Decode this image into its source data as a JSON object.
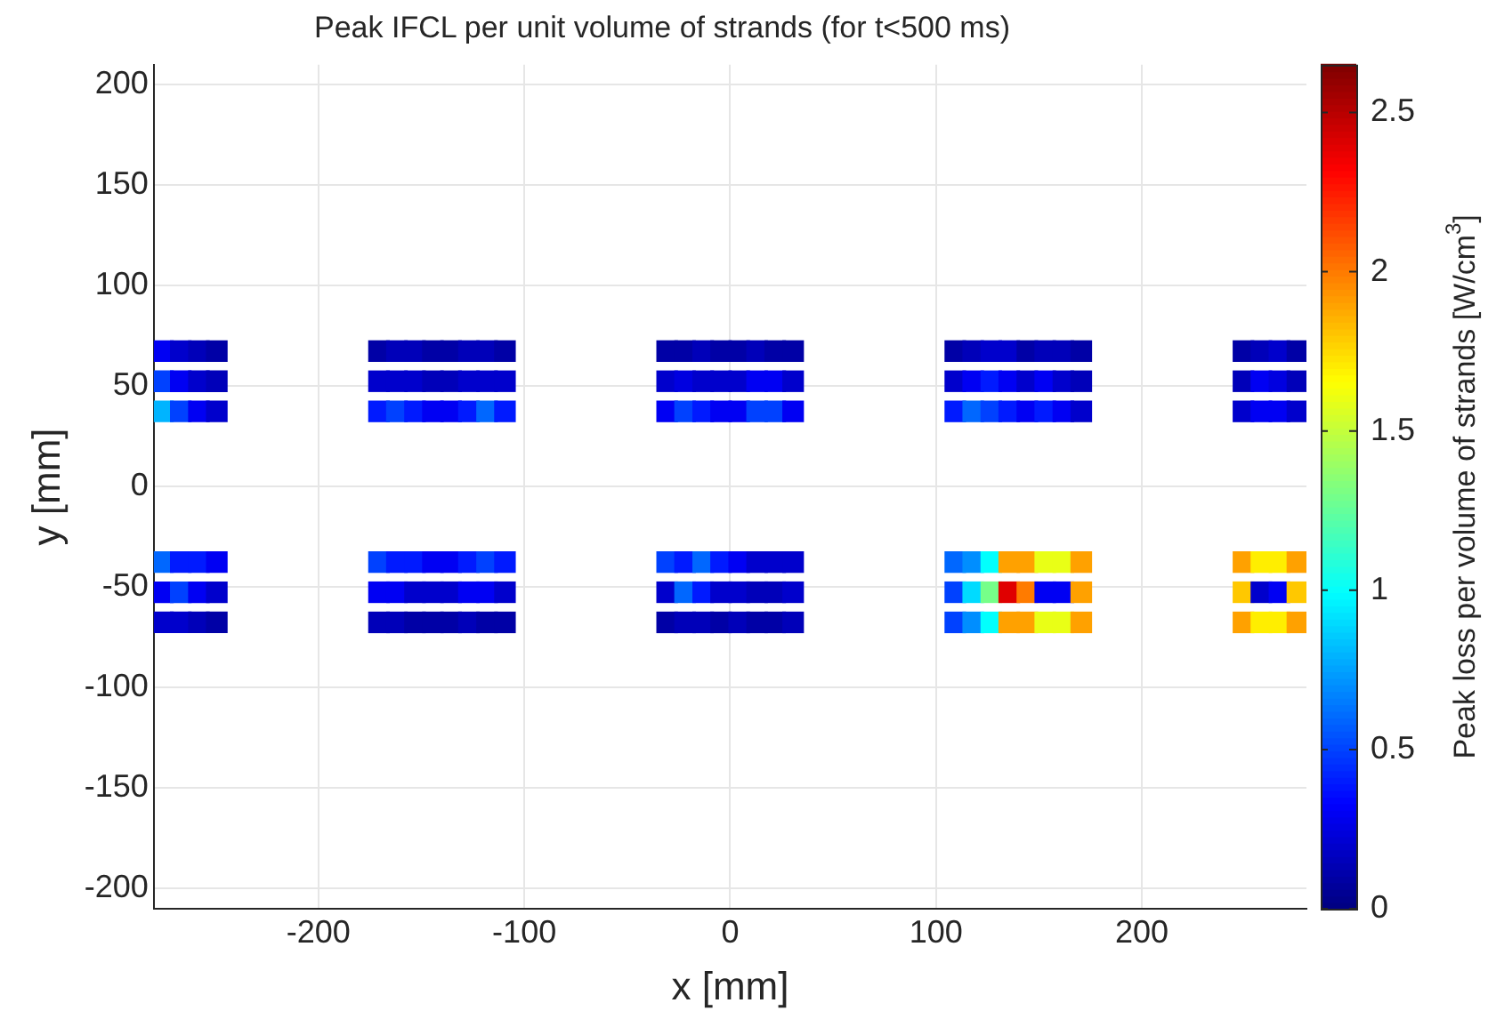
{
  "chart_data": {
    "type": "scatter",
    "title": "Peak IFCL per unit volume of strands (for t<500 ms)",
    "xlabel": "x [mm]",
    "ylabel": "y [mm]",
    "clabel": "Peak loss per volume of strands [W/cm$^{3}$]",
    "xlim": [
      -280,
      280
    ],
    "xticks": [
      -200,
      -100,
      0,
      100,
      200
    ],
    "ylim": [
      -210,
      210
    ],
    "yticks": [
      -200,
      -150,
      -100,
      -50,
      0,
      50,
      100,
      150,
      200
    ],
    "clim": [
      0,
      2.65
    ],
    "cticks": [
      0,
      0.5,
      1,
      1.5,
      2,
      2.5
    ],
    "grid": true,
    "marker": "square",
    "x": [
      -275.6,
      -266.9,
      -258.1,
      -249.4,
      -170.6,
      -161.9,
      -153.1,
      -144.4,
      -135.6,
      -126.9,
      -118.1,
      -109.4,
      -30.6,
      -21.9,
      -13.1,
      -4.4,
      4.4,
      13.1,
      21.9,
      30.6,
      109.4,
      118.1,
      126.9,
      135.6,
      144.4,
      153.1,
      161.9,
      170.6,
      249.4,
      258.1,
      266.9,
      275.6,
      -275.6,
      -266.9,
      -258.1,
      -249.4,
      -170.6,
      -161.9,
      -153.1,
      -144.4,
      -135.6,
      -126.9,
      -118.1,
      -109.4,
      -30.6,
      -21.9,
      -13.1,
      -4.4,
      4.4,
      13.1,
      21.9,
      30.6,
      109.4,
      118.1,
      126.9,
      135.6,
      144.4,
      153.1,
      161.9,
      170.6,
      249.4,
      258.1,
      266.9,
      275.6,
      -275.6,
      -266.9,
      -258.1,
      -249.4,
      -170.6,
      -161.9,
      -153.1,
      -144.4,
      -135.6,
      -126.9,
      -118.1,
      -109.4,
      -30.6,
      -21.9,
      -13.1,
      -4.4,
      4.4,
      13.1,
      21.9,
      30.6,
      109.4,
      118.1,
      126.9,
      135.6,
      144.4,
      153.1,
      161.9,
      170.6,
      249.4,
      258.1,
      266.9,
      275.6,
      -275.6,
      -266.9,
      -258.1,
      -249.4,
      -170.6,
      -161.9,
      -153.1,
      -144.4,
      -135.6,
      -126.9,
      -118.1,
      -109.4,
      -30.6,
      -21.9,
      -13.1,
      -4.4,
      4.4,
      13.1,
      21.9,
      30.6,
      109.4,
      118.1,
      126.9,
      135.6,
      144.4,
      153.1,
      161.9,
      170.6,
      249.4,
      258.1,
      266.9,
      275.6,
      -275.6,
      -266.9,
      -258.1,
      -249.4,
      -170.6,
      -161.9,
      -153.1,
      -144.4,
      -135.6,
      -126.9,
      -118.1,
      -109.4,
      -30.6,
      -21.9,
      -13.1,
      -4.4,
      4.4,
      13.1,
      21.9,
      30.6,
      109.4,
      118.1,
      126.9,
      135.6,
      144.4,
      153.1,
      161.9,
      170.6,
      249.4,
      258.1,
      266.9,
      275.6,
      -275.6,
      -266.9,
      -258.1,
      -249.4,
      -170.6,
      -161.9,
      -153.1,
      -144.4,
      -135.6,
      -126.9,
      -118.1,
      -109.4,
      -30.6,
      -21.9,
      -13.1,
      -4.4,
      4.4,
      13.1,
      21.9,
      30.6,
      109.4,
      118.1,
      126.9,
      135.6,
      144.4,
      153.1,
      161.9,
      170.6,
      249.4,
      258.1,
      266.9,
      275.6
    ],
    "values": [
      67.5,
      67.5,
      67.5,
      67.5,
      67.5,
      67.5,
      67.5,
      67.5,
      67.5,
      67.5,
      67.5,
      67.5,
      67.5,
      67.5,
      67.5,
      67.5,
      67.5,
      67.5,
      67.5,
      67.5,
      67.5,
      67.5,
      67.5,
      67.5,
      67.5,
      67.5,
      67.5,
      67.5,
      67.5,
      67.5,
      67.5,
      67.5,
      52.5,
      52.5,
      52.5,
      52.5,
      52.5,
      52.5,
      52.5,
      52.5,
      52.5,
      52.5,
      52.5,
      52.5,
      52.5,
      52.5,
      52.5,
      52.5,
      52.5,
      52.5,
      52.5,
      52.5,
      52.5,
      52.5,
      52.5,
      52.5,
      52.5,
      52.5,
      52.5,
      52.5,
      52.5,
      52.5,
      52.5,
      52.5,
      37.5,
      37.5,
      37.5,
      37.5,
      37.5,
      37.5,
      37.5,
      37.5,
      37.5,
      37.5,
      37.5,
      37.5,
      37.5,
      37.5,
      37.5,
      37.5,
      37.5,
      37.5,
      37.5,
      37.5,
      37.5,
      37.5,
      37.5,
      37.5,
      37.5,
      37.5,
      37.5,
      37.5,
      37.5,
      37.5,
      37.5,
      37.5,
      -37.5,
      -37.5,
      -37.5,
      -37.5,
      -37.5,
      -37.5,
      -37.5,
      -37.5,
      -37.5,
      -37.5,
      -37.5,
      -37.5,
      -37.5,
      -37.5,
      -37.5,
      -37.5,
      -37.5,
      -37.5,
      -37.5,
      -37.5,
      -37.5,
      -37.5,
      -37.5,
      -37.5,
      -37.5,
      -37.5,
      -37.5,
      -37.5,
      -37.5,
      -37.5,
      -37.5,
      -37.5,
      -52.5,
      -52.5,
      -52.5,
      -52.5,
      -52.5,
      -52.5,
      -52.5,
      -52.5,
      -52.5,
      -52.5,
      -52.5,
      -52.5,
      -52.5,
      -52.5,
      -52.5,
      -52.5,
      -52.5,
      -52.5,
      -52.5,
      -52.5,
      -52.5,
      -52.5,
      -52.5,
      -52.5,
      -52.5,
      -52.5,
      -52.5,
      -52.5,
      -52.5,
      -52.5,
      -52.5,
      -52.5,
      -67.5,
      -67.5,
      -67.5,
      -67.5,
      -67.5,
      -67.5,
      -67.5,
      -67.5,
      -67.5,
      -67.5,
      -67.5,
      -67.5,
      -67.5,
      -67.5,
      -67.5,
      -67.5,
      -67.5,
      -67.5,
      -67.5,
      -67.5,
      -67.5,
      -67.5,
      -67.5,
      -67.5,
      -67.5,
      -67.5,
      -67.5,
      -67.5,
      -67.5,
      -67.5,
      -67.5,
      -67.5
    ],
    "cvalues": [
      0.3,
      0.2,
      0.15,
      0.1,
      0.1,
      0.15,
      0.15,
      0.1,
      0.1,
      0.15,
      0.15,
      0.1,
      0.1,
      0.1,
      0.15,
      0.1,
      0.1,
      0.15,
      0.1,
      0.1,
      0.1,
      0.15,
      0.2,
      0.2,
      0.1,
      0.15,
      0.15,
      0.1,
      0.1,
      0.15,
      0.2,
      0.1,
      0.5,
      0.3,
      0.2,
      0.15,
      0.2,
      0.2,
      0.2,
      0.15,
      0.15,
      0.2,
      0.2,
      0.2,
      0.2,
      0.25,
      0.2,
      0.2,
      0.2,
      0.3,
      0.3,
      0.2,
      0.2,
      0.3,
      0.4,
      0.3,
      0.2,
      0.3,
      0.2,
      0.15,
      0.15,
      0.3,
      0.25,
      0.15,
      0.8,
      0.5,
      0.3,
      0.2,
      0.4,
      0.5,
      0.4,
      0.3,
      0.3,
      0.4,
      0.6,
      0.4,
      0.3,
      0.5,
      0.4,
      0.3,
      0.3,
      0.5,
      0.5,
      0.3,
      0.4,
      0.6,
      0.5,
      0.4,
      0.3,
      0.4,
      0.3,
      0.2,
      0.2,
      0.3,
      0.3,
      0.2,
      0.6,
      0.4,
      0.4,
      0.3,
      0.5,
      0.4,
      0.4,
      0.3,
      0.3,
      0.4,
      0.5,
      0.4,
      0.5,
      0.4,
      0.6,
      0.4,
      0.3,
      0.2,
      0.2,
      0.2,
      0.6,
      0.7,
      1.0,
      1.9,
      1.9,
      1.6,
      1.6,
      1.9,
      1.9,
      1.7,
      1.7,
      1.9,
      0.3,
      0.5,
      0.3,
      0.2,
      0.3,
      0.3,
      0.2,
      0.2,
      0.2,
      0.3,
      0.3,
      0.2,
      0.2,
      0.6,
      0.4,
      0.2,
      0.2,
      0.15,
      0.15,
      0.2,
      0.5,
      0.9,
      1.3,
      2.4,
      2.0,
      0.3,
      0.3,
      1.9,
      1.8,
      0.2,
      0.3,
      1.8,
      0.2,
      0.2,
      0.15,
      0.1,
      0.15,
      0.15,
      0.1,
      0.1,
      0.1,
      0.15,
      0.1,
      0.1,
      0.1,
      0.15,
      0.15,
      0.1,
      0.15,
      0.1,
      0.1,
      0.15,
      0.5,
      0.7,
      1.0,
      1.9,
      1.9,
      1.6,
      1.6,
      1.9,
      1.9,
      1.7,
      1.7,
      1.9
    ]
  }
}
